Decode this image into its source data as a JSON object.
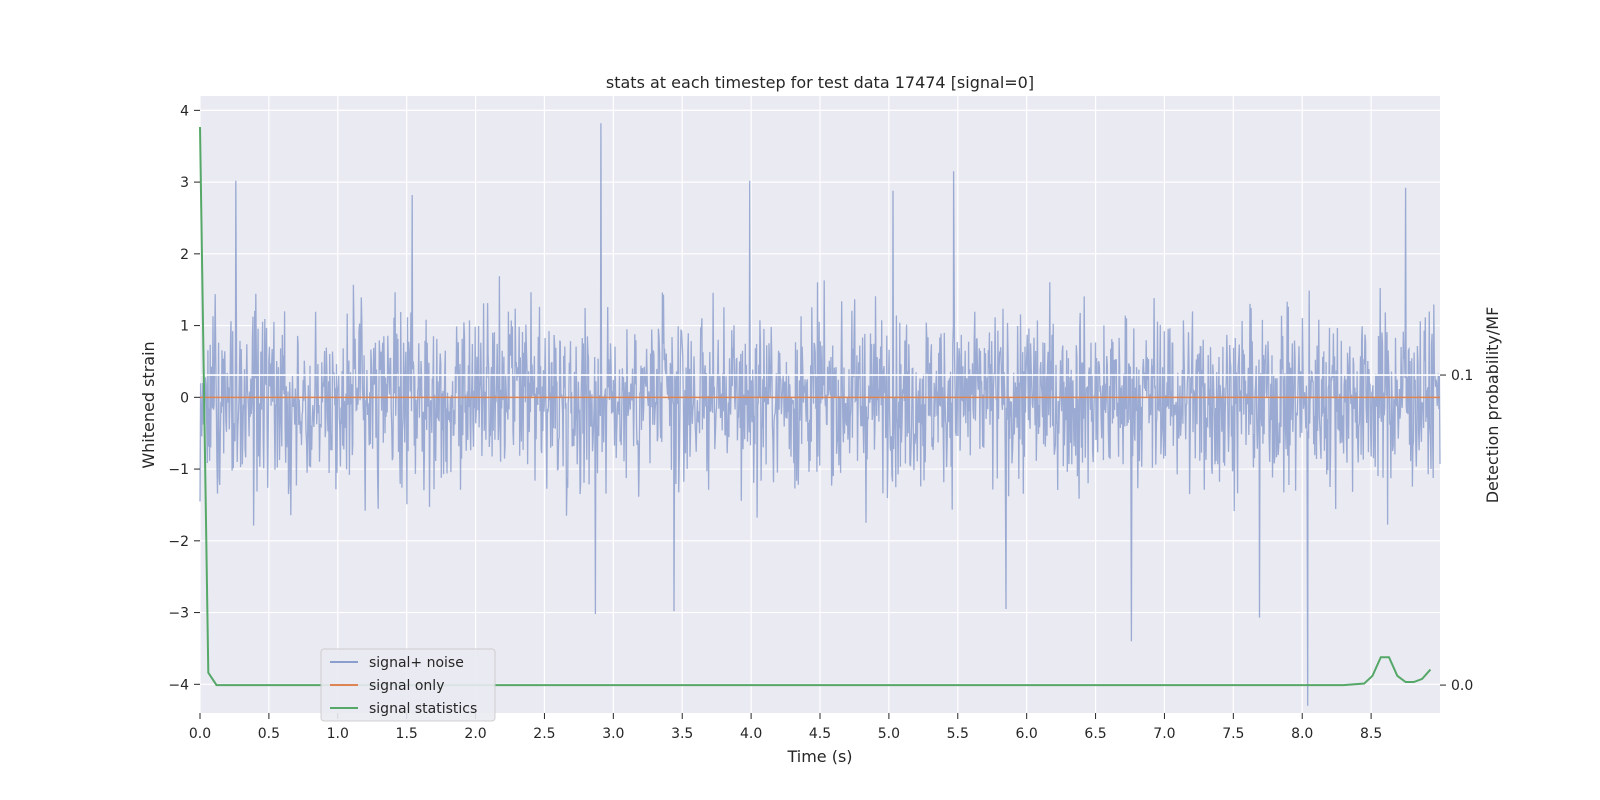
{
  "chart_data": {
    "type": "line",
    "title": "stats at each timestep for test data 17474 [signal=0]",
    "xlabel": "Time (s)",
    "ylabel": "Whitened strain",
    "y2label": "Detection probability/MF",
    "xlim": [
      0,
      9.0
    ],
    "ylim": [
      -4.4,
      4.2
    ],
    "y2lim": [
      -0.009,
      0.19
    ],
    "x_ticks": [
      "0.0",
      "0.5",
      "1.0",
      "1.5",
      "2.0",
      "2.5",
      "3.0",
      "3.5",
      "4.0",
      "4.5",
      "5.0",
      "5.5",
      "6.0",
      "6.5",
      "7.0",
      "7.5",
      "8.0",
      "8.5"
    ],
    "y_ticks": [
      "4",
      "3",
      "2",
      "1",
      "0",
      "−1",
      "−2",
      "−3",
      "−4"
    ],
    "y2_ticks": [
      "0.1",
      "0.0"
    ],
    "grid": true,
    "legend_position": "lower-left",
    "legend": [
      "signal+ noise",
      "signal only",
      "signal statistics"
    ],
    "colors": {
      "noise": "#8c9fcc",
      "signal": "#dd8452",
      "stats": "#55a868",
      "plot_bg": "#eaeaf2",
      "grid": "#ffffff"
    },
    "series": [
      {
        "name": "signal+ noise",
        "axis": "left",
        "sampling_rate_hz": 2048,
        "duration_s": 9.0,
        "envelope": {
          "upper_typical": 1.6,
          "lower_typical": -1.6
        },
        "peaks": [
          {
            "x": 0.26,
            "y": 3.02
          },
          {
            "x": 1.54,
            "y": 2.82
          },
          {
            "x": 2.91,
            "y": 3.82
          },
          {
            "x": 3.99,
            "y": 3.02
          },
          {
            "x": 5.47,
            "y": 3.15
          },
          {
            "x": 5.03,
            "y": 2.88
          },
          {
            "x": 6.76,
            "y": -3.4
          },
          {
            "x": 8.04,
            "y": -4.3
          },
          {
            "x": 7.69,
            "y": -3.07
          },
          {
            "x": 2.87,
            "y": -3.02
          },
          {
            "x": 3.44,
            "y": -2.98
          },
          {
            "x": 5.85,
            "y": -2.95
          },
          {
            "x": 8.75,
            "y": 2.92
          }
        ]
      },
      {
        "name": "signal only",
        "axis": "left",
        "x": [
          0,
          9.0
        ],
        "y": [
          0,
          0
        ]
      },
      {
        "name": "signal statistics",
        "axis": "right",
        "x": [
          0.0,
          0.06,
          0.12,
          0.2,
          8.0,
          8.3,
          8.45,
          8.51,
          8.57,
          8.63,
          8.69,
          8.75,
          8.81,
          8.87,
          8.93
        ],
        "y": [
          0.18,
          0.004,
          0.0,
          0.0,
          0.0,
          0.0,
          0.0005,
          0.003,
          0.009,
          0.009,
          0.003,
          0.001,
          0.001,
          0.002,
          0.005
        ]
      }
    ],
    "mf_threshold_line": {
      "axis": "right",
      "y": 0.1
    }
  }
}
